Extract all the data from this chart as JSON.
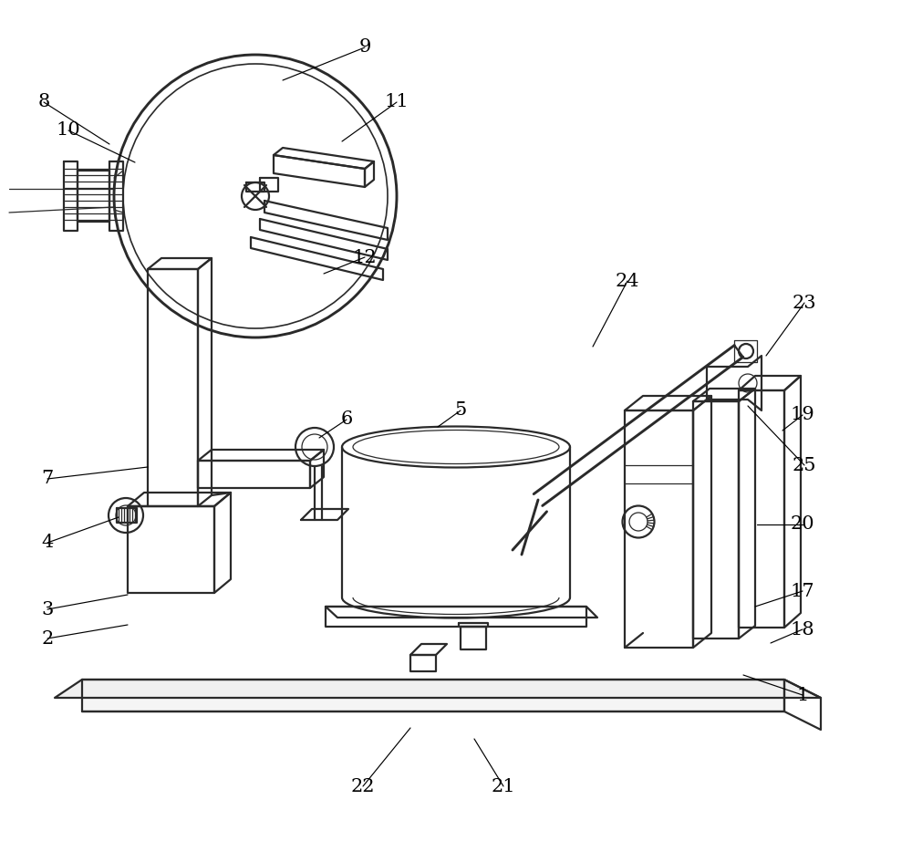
{
  "bg_color": "#ffffff",
  "line_color": "#2a2a2a",
  "line_width": 1.6,
  "thin_line": 0.9,
  "annotation_color": "#000000",
  "font_size": 15
}
